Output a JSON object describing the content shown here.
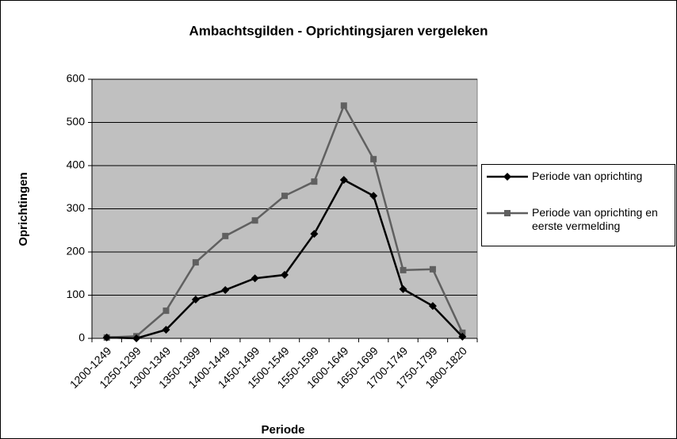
{
  "chart_data": {
    "type": "line",
    "title": "Ambachtsgilden - Oprichtingsjaren vergeleken",
    "x_label": "Periode",
    "y_label": "Oprichtingen",
    "categories": [
      "1200-1249",
      "1250-1299",
      "1300-1349",
      "1350-1399",
      "1400-1449",
      "1450-1499",
      "1500-1549",
      "1550-1599",
      "1600-1649",
      "1650-1699",
      "1700-1749",
      "1750-1799",
      "1800-1820"
    ],
    "series": [
      {
        "name": "Periode van oprichting",
        "color": "#000000",
        "marker": "diamond",
        "values": [
          2,
          0,
          20,
          90,
          112,
          139,
          147,
          242,
          367,
          330,
          114,
          75,
          4
        ]
      },
      {
        "name": "Periode van oprichting en eerste vermelding",
        "color": "#606060",
        "marker": "square",
        "values": [
          2,
          5,
          64,
          176,
          237,
          273,
          330,
          363,
          539,
          415,
          158,
          160,
          13
        ]
      }
    ],
    "ylim": [
      0,
      600
    ],
    "yticks": [
      0,
      100,
      200,
      300,
      400,
      500,
      600
    ],
    "grid": true,
    "legend": "right",
    "plot_background": "#c0c0c0"
  }
}
